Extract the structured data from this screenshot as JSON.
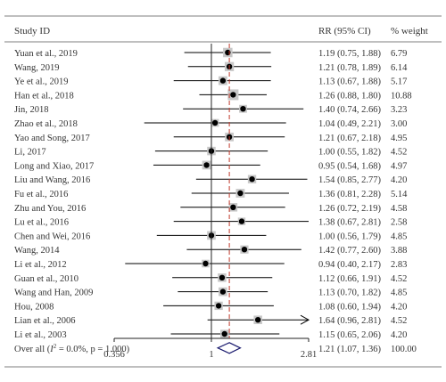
{
  "chart_data": {
    "type": "forest",
    "header": {
      "study": "Study ID",
      "effect": "RR (95% CI)",
      "weight": "% weight"
    },
    "studies": [
      {
        "label": "Yuan et al., 2019",
        "rr": 1.19,
        "lo": 0.75,
        "hi": 1.88,
        "ci_text": "1.19 (0.75, 1.88)",
        "weight": "6.79"
      },
      {
        "label": "Wang, 2019",
        "rr": 1.21,
        "lo": 0.78,
        "hi": 1.89,
        "ci_text": "1.21 (0.78, 1.89)",
        "weight": "6.14"
      },
      {
        "label": "Ye et al., 2019",
        "rr": 1.13,
        "lo": 0.67,
        "hi": 1.88,
        "ci_text": "1.13 (0.67, 1.88)",
        "weight": "5.17"
      },
      {
        "label": "Han et al., 2018",
        "rr": 1.26,
        "lo": 0.88,
        "hi": 1.8,
        "ci_text": "1.26 (0.88, 1.80)",
        "weight": "10.88"
      },
      {
        "label": "Jin, 2018",
        "rr": 1.4,
        "lo": 0.74,
        "hi": 2.66,
        "ci_text": "1.40 (0.74, 2.66)",
        "weight": "3.23"
      },
      {
        "label": "Zhao et al., 2018",
        "rr": 1.04,
        "lo": 0.49,
        "hi": 2.21,
        "ci_text": "1.04 (0.49, 2.21)",
        "weight": "3.00"
      },
      {
        "label": "Yao and Song, 2017",
        "rr": 1.21,
        "lo": 0.67,
        "hi": 2.18,
        "ci_text": "1.21 (0.67, 2.18)",
        "weight": "4.95"
      },
      {
        "label": "Li, 2017",
        "rr": 1.0,
        "lo": 0.55,
        "hi": 1.82,
        "ci_text": "1.00 (0.55, 1.82)",
        "weight": "4.52"
      },
      {
        "label": "Long and Xiao, 2017",
        "rr": 0.95,
        "lo": 0.54,
        "hi": 1.68,
        "ci_text": "0.95 (0.54, 1.68)",
        "weight": "4.97"
      },
      {
        "label": "Liu and Wang, 2016",
        "rr": 1.54,
        "lo": 0.85,
        "hi": 2.77,
        "ci_text": "1.54 (0.85, 2.77)",
        "weight": "4.20"
      },
      {
        "label": "Fu et al., 2016",
        "rr": 1.36,
        "lo": 0.81,
        "hi": 2.28,
        "ci_text": "1.36 (0.81, 2.28)",
        "weight": "5.14"
      },
      {
        "label": "Zhu and You, 2016",
        "rr": 1.26,
        "lo": 0.72,
        "hi": 2.19,
        "ci_text": "1.26 (0.72, 2.19)",
        "weight": "4.58"
      },
      {
        "label": "Lu et al., 2016",
        "rr": 1.38,
        "lo": 0.67,
        "hi": 2.81,
        "ci_text": "1.38 (0.67, 2.81)",
        "weight": "2.58"
      },
      {
        "label": "Chen and Wei, 2016",
        "rr": 1.0,
        "lo": 0.56,
        "hi": 1.79,
        "ci_text": "1.00 (0.56, 1.79)",
        "weight": "4.85"
      },
      {
        "label": "Wang, 2014",
        "rr": 1.42,
        "lo": 0.77,
        "hi": 2.6,
        "ci_text": "1.42 (0.77, 2.60)",
        "weight": "3.88"
      },
      {
        "label": "Li et al., 2012",
        "rr": 0.94,
        "lo": 0.4,
        "hi": 2.17,
        "ci_text": "0.94 (0.40, 2.17)",
        "weight": "2.83"
      },
      {
        "label": "Guan et al., 2010",
        "rr": 1.12,
        "lo": 0.66,
        "hi": 1.91,
        "ci_text": "1.12 (0.66, 1.91)",
        "weight": "4.52"
      },
      {
        "label": "Wang and Han, 2009",
        "rr": 1.13,
        "lo": 0.7,
        "hi": 1.82,
        "ci_text": "1.13 (0.70, 1.82)",
        "weight": "4.85"
      },
      {
        "label": "Hou, 2008",
        "rr": 1.08,
        "lo": 0.6,
        "hi": 1.94,
        "ci_text": "1.08 (0.60, 1.94)",
        "weight": "4.20"
      },
      {
        "label": "Lian et al., 2006",
        "rr": 1.64,
        "lo": 0.96,
        "hi": 2.81,
        "ci_text": "1.64 (0.96, 2.81)",
        "weight": "4.52",
        "arrow": true
      },
      {
        "label": "Li et al., 2003",
        "rr": 1.15,
        "lo": 0.65,
        "hi": 2.06,
        "ci_text": "1.15 (0.65, 2.06)",
        "weight": "4.20"
      }
    ],
    "overall": {
      "label_prefix": "Over all (",
      "i2_symbol": "I",
      "i2_sup": "2",
      "label_suffix": " = 0.0%, p = 1.000)",
      "rr": 1.21,
      "lo": 1.07,
      "hi": 1.36,
      "ci_text": "1.21 (1.07, 1.36)",
      "weight": "100.00"
    },
    "x_axis": {
      "scale": "log",
      "range": [
        0.356,
        2.81
      ],
      "ticks": [
        {
          "value": 0.356,
          "label": "0.356"
        },
        {
          "value": 1,
          "label": "1"
        },
        {
          "value": 2.81,
          "label": "2.81"
        }
      ]
    },
    "null_line": 1,
    "colors": {
      "text": "#333333",
      "point": "#000000",
      "weight_box": "#c8c8c8",
      "overall_line": "#c0392b",
      "diamond": "#1a1a6e",
      "rule": "#555555"
    }
  }
}
